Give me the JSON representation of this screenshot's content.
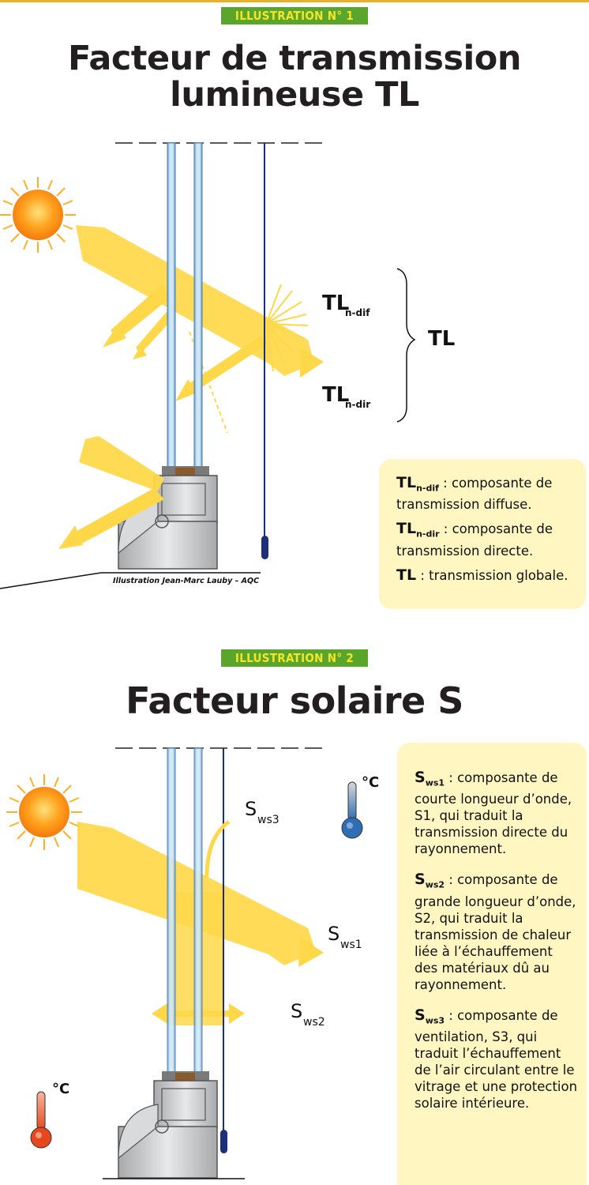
{
  "ill1": {
    "badge": "ILLUSTRATION N° 1",
    "title_line1": "Facteur de transmission",
    "title_line2": "lumineuse TL",
    "labels": {
      "tl_main": "TL",
      "tl": "TL",
      "ndif": "n-dif",
      "ndir": "n-dir"
    },
    "credit": "Illustration Jean-Marc Lauby – AQC",
    "legend": [
      {
        "sym": "TL",
        "sub": "n-dif",
        "text": " : composante de transmission diffuse."
      },
      {
        "sym": "TL",
        "sub": "n-dir",
        "text": " : composante de transmission directe."
      },
      {
        "sym": "TL",
        "sub": "",
        "text": " : transmission globale."
      }
    ]
  },
  "ill2": {
    "badge": "ILLUSTRATION N° 2",
    "title": "Facteur solaire S",
    "labels": {
      "s": "S",
      "ws1": "ws1",
      "ws2": "ws2",
      "ws3": "ws3",
      "deg": "°C"
    },
    "legend": [
      {
        "sym": "S",
        "sub": "ws1",
        "text": " : composante de courte longueur d’onde, S1, qui traduit la transmission directe du rayonnement."
      },
      {
        "sym": "S",
        "sub": "ws2",
        "text": " : composante de grande longueur d’onde, S2, qui traduit la transmission de chaleur liée à l’échauffement des matériaux dû au rayonnement."
      },
      {
        "sym": "S",
        "sub": "ws3",
        "text": " : composante de ventilation, S3, qui traduit l’échauffement de l’air circulant entre le vitrage et une protection solaire intérieure."
      }
    ]
  },
  "colors": {
    "badge_bg": "#5aa52c",
    "badge_text": "#f5e52a",
    "light": "#ffd84a",
    "glass": "#aed6ee",
    "box": "#fff6c2"
  },
  "icons": [
    "sun-icon",
    "thermometer-cold-icon",
    "thermometer-hot-icon",
    "window-frame-icon",
    "brace-icon"
  ]
}
